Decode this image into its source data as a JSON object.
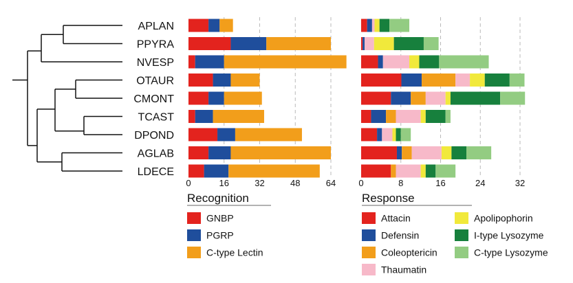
{
  "chart_data": {
    "type": "bar",
    "subtype": "stacked-horizontal",
    "species": [
      "APLAN",
      "PPYRA",
      "NVESP",
      "OTAUR",
      "CMONT",
      "TCAST",
      "DPOND",
      "AGLAB",
      "LDECE"
    ],
    "panels": [
      {
        "id": "recognition",
        "title": "Recognition",
        "xlim": [
          0,
          72
        ],
        "xticks": [
          0,
          16,
          32,
          48,
          64
        ],
        "grid": "dashed vertical",
        "series": [
          {
            "name": "GNBP",
            "color": "#e3231e",
            "values": [
              9,
              19,
              3,
              11,
              9,
              3,
              13,
              9,
              7
            ]
          },
          {
            "name": "PGRP",
            "color": "#1f4e9c",
            "values": [
              5,
              16,
              13,
              8,
              7,
              8,
              8,
              10,
              11
            ]
          },
          {
            "name": "C-type Lectin",
            "color": "#f29e1b",
            "values": [
              6,
              29,
              55,
              13,
              17,
              23,
              30,
              45,
              41
            ]
          }
        ]
      },
      {
        "id": "response",
        "title": "Response",
        "xlim": [
          0,
          36
        ],
        "xticks": [
          0,
          8,
          16,
          24,
          32
        ],
        "grid": "dashed vertical",
        "series": [
          {
            "name": "Attacin",
            "color": "#e3231e",
            "values": [
              1.2,
              0.3,
              3.4,
              8.1,
              6,
              2,
              3.2,
              7.2,
              6
            ]
          },
          {
            "name": "Defensin",
            "color": "#1f4e9c",
            "values": [
              1,
              0.4,
              1,
              4.1,
              4,
              3,
              1,
              1,
              0
            ]
          },
          {
            "name": "Coleoptericin",
            "color": "#f29e1b",
            "values": [
              0,
              0,
              0,
              6.8,
              3,
              2,
              0,
              2,
              1
            ]
          },
          {
            "name": "Thaumatin",
            "color": "#f7b9c9",
            "values": [
              0.5,
              1.9,
              5.3,
              2.9,
              4,
              5,
              2.1,
              6,
              5
            ]
          },
          {
            "name": "Apolipophorin",
            "color": "#f1e93b",
            "values": [
              1,
              4,
              2,
              3,
              1,
              1,
              0.7,
              2,
              1
            ]
          },
          {
            "name": "I-type Lysozyme",
            "color": "#17803d",
            "values": [
              2,
              6,
              4,
              5,
              10,
              4,
              1,
              3,
              2
            ]
          },
          {
            "name": "C-type Lysozyme",
            "color": "#93cc82",
            "values": [
              4,
              3,
              10,
              3,
              5,
              1,
              2,
              5,
              4
            ]
          }
        ]
      }
    ],
    "legend_placement": "bottom"
  }
}
